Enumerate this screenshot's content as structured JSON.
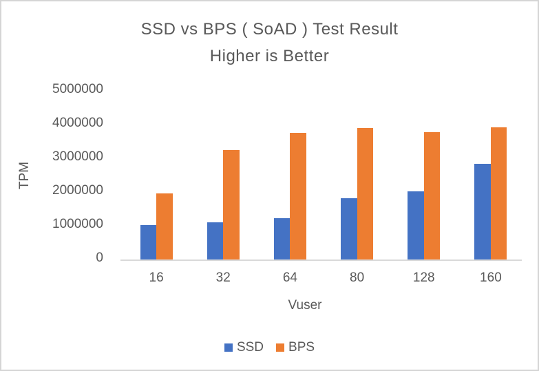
{
  "chart_data": {
    "type": "bar",
    "title": "SSD vs BPS ( SoAD ) Test Result",
    "subtitle": "Higher is Better",
    "xlabel": "Vuser",
    "ylabel": "TPM",
    "categories": [
      "16",
      "32",
      "64",
      "80",
      "128",
      "160"
    ],
    "series": [
      {
        "name": "SSD",
        "color": "#4472C4",
        "values": [
          1030000,
          1110000,
          1220000,
          1820000,
          2030000,
          2830000
        ]
      },
      {
        "name": "BPS",
        "color": "#ED7D31",
        "values": [
          1950000,
          3250000,
          3750000,
          3890000,
          3780000,
          3920000
        ]
      }
    ],
    "ylim": [
      0,
      5000000
    ],
    "yticks": [
      0,
      1000000,
      2000000,
      3000000,
      4000000,
      5000000
    ],
    "grid": false,
    "legend_position": "bottom",
    "colors": {
      "text": "#595959",
      "axis_line": "#D9D9D9",
      "frame_border": "#D5D5D5"
    }
  }
}
